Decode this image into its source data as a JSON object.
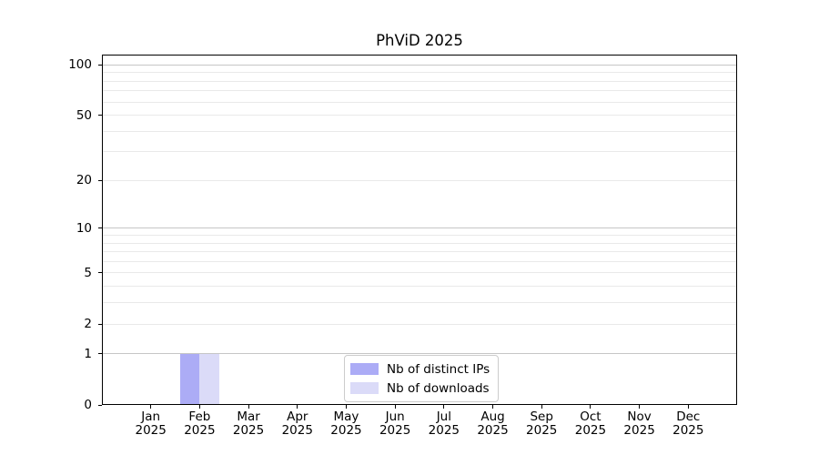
{
  "chart_data": {
    "type": "bar",
    "title": "PhViD 2025",
    "x_months": [
      "Jan",
      "Feb",
      "Mar",
      "Apr",
      "May",
      "Jun",
      "Jul",
      "Aug",
      "Sep",
      "Oct",
      "Nov",
      "Dec"
    ],
    "x_year": "2025",
    "series": [
      {
        "name": "Nb of distinct IPs",
        "color": "#acacf6",
        "values": [
          0,
          1,
          0,
          0,
          0,
          0,
          0,
          0,
          0,
          0,
          0,
          0
        ]
      },
      {
        "name": "Nb of downloads",
        "color": "#dbdbf8",
        "values": [
          0,
          1,
          0,
          0,
          0,
          0,
          0,
          0,
          0,
          0,
          0,
          0
        ]
      }
    ],
    "xlabel": "",
    "ylabel": "",
    "y_scale": "log1p",
    "ylim": [
      0,
      115
    ],
    "y_ticks_labeled": [
      0,
      1,
      2,
      5,
      10,
      20,
      50,
      100
    ],
    "y_grid_major": [
      1,
      10,
      100
    ],
    "y_grid_minor": [
      2,
      3,
      4,
      5,
      6,
      7,
      8,
      9,
      20,
      30,
      40,
      50,
      60,
      70,
      80,
      90
    ],
    "grid": true,
    "legend_position": "lower center",
    "colors": {
      "grid_major": "#c6c6c6",
      "grid_minor": "#e9e9e9",
      "spine": "#000000",
      "text": "#000000",
      "background": "#ffffff"
    }
  }
}
